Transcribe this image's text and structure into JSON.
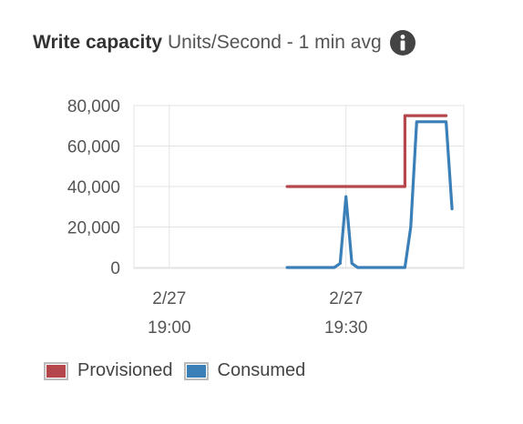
{
  "header": {
    "title": "Write capacity",
    "subtitle": "Units/Second - 1 min avg",
    "info_icon": "info-icon"
  },
  "colors": {
    "provisioned": "#b5474c",
    "consumed": "#3a7fb8",
    "grid": "#e3e3e3",
    "axis_text": "#555555"
  },
  "chart_data": {
    "type": "line",
    "title": "Write capacity",
    "ylim": [
      0,
      80000
    ],
    "yticks": [
      "0",
      "20,000",
      "40,000",
      "60,000",
      "80,000"
    ],
    "xlim": [
      "2/27 18:54",
      "2/27 19:50"
    ],
    "xticks": [
      {
        "date": "2/27",
        "time": "19:00",
        "minute": 0
      },
      {
        "date": "2/27",
        "time": "19:30",
        "minute": 30
      }
    ],
    "grid": true,
    "legend_position": "bottom",
    "series": [
      {
        "name": "Provisioned",
        "color": "#b5474c",
        "x": [
          "19:20",
          "19:40",
          "19:40",
          "19:47"
        ],
        "minutes": [
          20,
          40,
          40,
          47
        ],
        "values": [
          40000,
          40000,
          75000,
          75000
        ]
      },
      {
        "name": "Consumed",
        "color": "#3a7fb8",
        "x": [
          "19:20",
          "19:28",
          "19:29",
          "19:30",
          "19:31",
          "19:32",
          "19:33",
          "19:38",
          "19:40",
          "19:41",
          "19:42",
          "19:43",
          "19:44",
          "19:45",
          "19:46",
          "19:47",
          "19:48"
        ],
        "minutes": [
          20,
          28,
          29,
          30,
          31,
          32,
          33,
          38,
          40,
          41,
          42,
          43,
          44,
          45,
          46,
          47,
          48
        ],
        "values": [
          0,
          0,
          2000,
          35000,
          2000,
          0,
          0,
          0,
          0,
          20000,
          72000,
          72000,
          72000,
          72000,
          72000,
          72000,
          29000
        ]
      }
    ]
  }
}
